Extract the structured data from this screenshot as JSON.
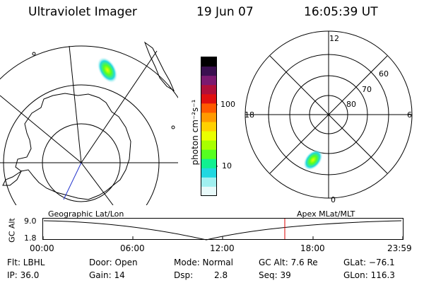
{
  "header": {
    "instrument": "Ultraviolet Imager",
    "date": "19 Jun 07",
    "time": "16:05:39 UT"
  },
  "colorbar": {
    "unit_label": "photon cm⁻²s⁻¹",
    "ticks": [
      "100",
      "10"
    ],
    "colors": [
      "#000000",
      "#3a1050",
      "#7b1a70",
      "#b0103a",
      "#e01010",
      "#ff5a00",
      "#ff9a00",
      "#ffd000",
      "#eaff00",
      "#a8ff00",
      "#55ff20",
      "#10f090",
      "#20d8e0",
      "#a0f0f0",
      "#e8fafa"
    ]
  },
  "polar_plot": {
    "mlt_labels": {
      "top": "12",
      "left": "18",
      "right": "6",
      "bottom": "0"
    },
    "lat_labels": [
      "60",
      "70",
      "80"
    ]
  },
  "timeline": {
    "left_label": "Geographic Lat/Lon",
    "right_label": "Apex MLat/MLT",
    "axis_title": "GC Alt",
    "y_ticks": [
      "9.0",
      "1.8"
    ],
    "x_ticks": [
      "00:00",
      "06:00",
      "12:00",
      "18:00",
      "23:59"
    ],
    "current_time_marker": "16:05:39"
  },
  "status": {
    "filter": "Flt: LBHL",
    "ip": "IP: 36.0",
    "door": "Door: Open",
    "gain": "Gain: 14",
    "mode": "Mode: Normal",
    "dsp_label": "Dsp:",
    "dsp_value": "2.8",
    "gc_alt": "GC Alt: 7.6 Re",
    "seq": "Seq: 39",
    "glat": "GLat: −76.1",
    "glon": "GLon: 116.3"
  }
}
